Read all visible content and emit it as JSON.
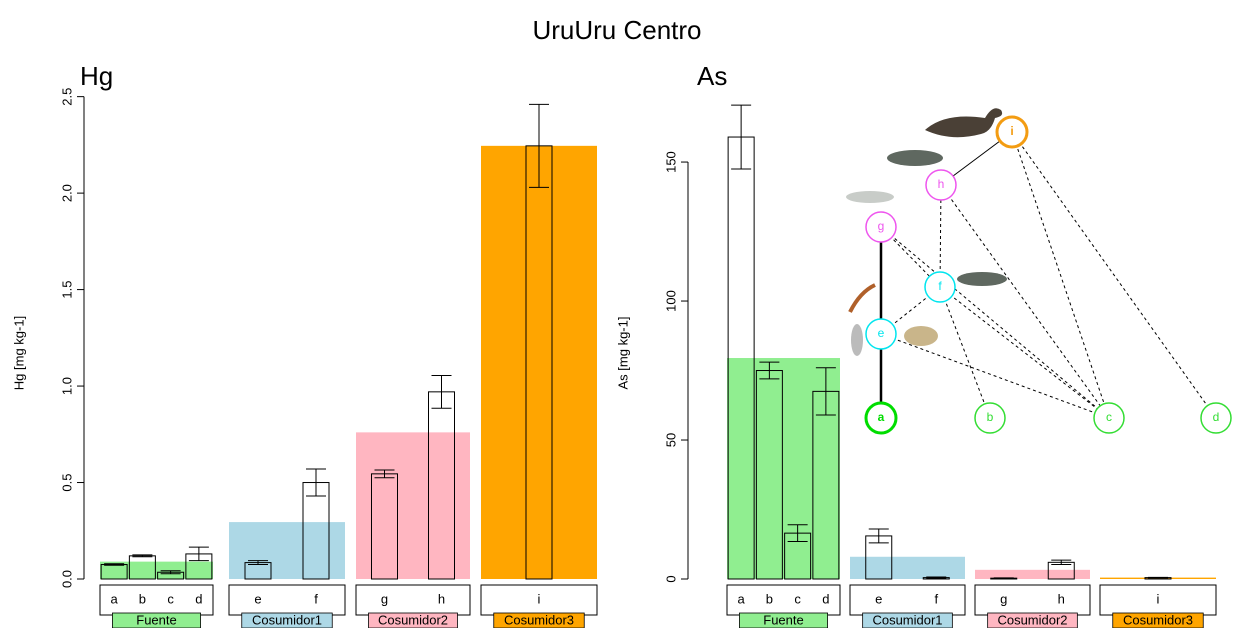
{
  "title": "UruUru Centro",
  "chart_data": [
    {
      "type": "bar",
      "title": "Hg",
      "y_label": "Hg [mg kg-1]",
      "ylim": [
        0,
        2.55
      ],
      "yticks": [
        {
          "value": 0,
          "label": "0.0"
        },
        0.5,
        {
          "value": 1,
          "label": "1.0"
        },
        1.5,
        {
          "value": 2,
          "label": "2.0"
        },
        2.5
      ],
      "groups": [
        {
          "name": "Fuente",
          "color": "#90ee90",
          "value": 0.09,
          "categories": [
            "a",
            "b",
            "c",
            "d"
          ],
          "values": [
            0.075,
            0.12,
            0.035,
            0.13
          ],
          "errors": [
            0.004,
            0.005,
            0.008,
            0.035
          ]
        },
        {
          "name": "Cosumidor1",
          "color": "#add8e6",
          "value": 0.295,
          "categories": [
            "e",
            "f"
          ],
          "values": [
            0.085,
            0.5
          ],
          "errors": [
            0.01,
            0.07
          ]
        },
        {
          "name": "Cosumidor2",
          "color": "#ffb6c1",
          "value": 0.76,
          "categories": [
            "g",
            "h"
          ],
          "values": [
            0.545,
            0.97
          ],
          "errors": [
            0.02,
            0.085
          ]
        },
        {
          "name": "Cosumidor3",
          "color": "#ffa500",
          "value": 2.245,
          "categories": [
            "i"
          ],
          "values": [
            2.245
          ],
          "errors": [
            0.215
          ]
        }
      ]
    },
    {
      "type": "bar",
      "title": "As",
      "y_label": "As [mg kg-1]",
      "ylim": [
        0,
        177
      ],
      "yticks": [
        0,
        50,
        100,
        150
      ],
      "groups": [
        {
          "name": "Fuente",
          "color": "#90ee90",
          "value": 79.5,
          "categories": [
            "a",
            "b",
            "c",
            "d"
          ],
          "values": [
            159,
            75,
            16.5,
            67.5
          ],
          "errors": [
            11.5,
            3,
            3,
            8.5
          ]
        },
        {
          "name": "Cosumidor1",
          "color": "#add8e6",
          "value": 8,
          "categories": [
            "e",
            "f"
          ],
          "values": [
            15.5,
            0.5
          ],
          "errors": [
            2.5,
            0.2
          ]
        },
        {
          "name": "Cosumidor2",
          "color": "#ffb6c1",
          "value": 3.3,
          "categories": [
            "g",
            "h"
          ],
          "values": [
            0.3,
            6
          ],
          "errors": [
            0.1,
            0.8
          ]
        },
        {
          "name": "Cosumidor3",
          "color": "#ffa500",
          "value": 0.5,
          "categories": [
            "i"
          ],
          "values": [
            0.5
          ],
          "errors": [
            0.1
          ]
        }
      ]
    }
  ],
  "food_web": {
    "nodes": [
      {
        "label": "a",
        "color": "#00dd00"
      },
      {
        "label": "b",
        "color": "#33dd33"
      },
      {
        "label": "c",
        "color": "#33dd33"
      },
      {
        "label": "d",
        "color": "#33dd33"
      },
      {
        "label": "e",
        "color": "#00e5ee"
      },
      {
        "label": "f",
        "color": "#00e5ee"
      },
      {
        "label": "g",
        "color": "#ee55ee"
      },
      {
        "label": "h",
        "color": "#ee55ee"
      },
      {
        "label": "i",
        "color": "#f39c12"
      }
    ]
  }
}
